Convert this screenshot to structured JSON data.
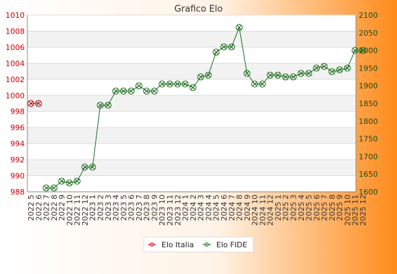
{
  "chart_data": {
    "type": "line",
    "title": "Grafico Elo",
    "xlabel": "",
    "ylabel": "",
    "categories": [
      "2022 5",
      "2022 6",
      "2022 7",
      "2022 8",
      "2022 9",
      "2022 10",
      "2022 11",
      "2022 12",
      "2023 1",
      "2023 2",
      "2023 3",
      "2023 4",
      "2023 5",
      "2023 6",
      "2023 7",
      "2023 8",
      "2023 9",
      "2023 10",
      "2023 11",
      "2023 12",
      "2024 1",
      "2024 2",
      "2024 3",
      "2024 4",
      "2024 5",
      "2024 6",
      "2024 7",
      "2024 8",
      "2024 9",
      "2024 10",
      "2024 11",
      "2024 12",
      "2025 1",
      "2025 2",
      "2025 3",
      "2025 4",
      "2025 5",
      "2025 6",
      "2025 7",
      "2025 8",
      "2025 9",
      "2025 10",
      "2025 11",
      "2025 12"
    ],
    "y_left": {
      "ylim": [
        988,
        1010
      ],
      "ticks": [
        988,
        990,
        992,
        994,
        996,
        998,
        1000,
        1002,
        1004,
        1006,
        1008,
        1010
      ],
      "color": "#cc0000"
    },
    "y_right": {
      "ylim": [
        1600,
        2100
      ],
      "ticks": [
        1600,
        1650,
        1700,
        1750,
        1800,
        1850,
        1900,
        1950,
        2000,
        2050,
        2100
      ],
      "color": "#1a4d1a"
    },
    "grid": true,
    "legend_position": "bottom-center",
    "series": [
      {
        "name": "Elo Italia",
        "axis": "left",
        "color": "#cc0000",
        "values": [
          999,
          999,
          null,
          null,
          null,
          null,
          null,
          null,
          null,
          null,
          null,
          null,
          null,
          null,
          null,
          null,
          null,
          null,
          null,
          null,
          null,
          null,
          null,
          null,
          null,
          null,
          null,
          null,
          null,
          null,
          null,
          null,
          null,
          null,
          null,
          null,
          null,
          null,
          null,
          null,
          null,
          null,
          null,
          null
        ]
      },
      {
        "name": "Elo FIDE",
        "axis": "right",
        "color": "#1a6b1a",
        "values": [
          null,
          null,
          1611,
          1611,
          1630,
          1625,
          1630,
          1670,
          1670,
          1845,
          1845,
          1885,
          1885,
          1885,
          1900,
          1885,
          1885,
          1905,
          1905,
          1905,
          1905,
          1895,
          1925,
          1930,
          1995,
          2010,
          2010,
          2065,
          1935,
          1905,
          1905,
          1930,
          1930,
          1925,
          1925,
          1935,
          1935,
          1950,
          1955,
          1940,
          1945,
          1950,
          2000,
          2000
        ]
      }
    ]
  }
}
